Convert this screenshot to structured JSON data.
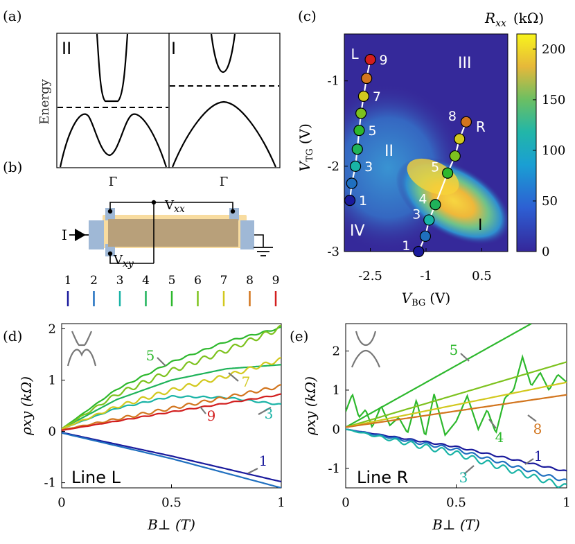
{
  "panel_labels": {
    "a": "(a)",
    "b": "(b)",
    "c": "(c)",
    "d": "(d)",
    "e": "(e)"
  },
  "panel_a": {
    "ylabel": "Energy",
    "left": {
      "region": "II",
      "xtick": "Γ"
    },
    "right": {
      "region": "I",
      "xtick": "Γ"
    }
  },
  "panel_b": {
    "current_label": "I",
    "vxx_label": {
      "main": "V",
      "sub": "xx"
    },
    "vxy_label": {
      "main": "V",
      "sub": "xy"
    },
    "line_indices": [
      "1",
      "2",
      "3",
      "4",
      "5",
      "6",
      "7",
      "8",
      "9"
    ],
    "line_colors": [
      "#1a1a9c",
      "#1f6fbf",
      "#19b3a6",
      "#1fb35a",
      "#2db82d",
      "#7dc21e",
      "#d2c81e",
      "#d2751e",
      "#d21e1e"
    ],
    "colors": {
      "device": "#b8a07a",
      "contact": "#9fb8d6",
      "halo": "#f8dca0"
    }
  },
  "panel_c": {
    "colorbar_label": {
      "main": "R",
      "sub": "xx",
      "unit": "(kΩ)"
    },
    "colorbar_ticks": [
      "200",
      "150",
      "100",
      "50",
      "0"
    ],
    "colorbar_range": [
      0,
      215
    ],
    "xlabel": {
      "main": "V",
      "sub": "BG",
      "unit": "(V)"
    },
    "ylabel": {
      "main": "V",
      "sub": "TG",
      "unit": "(V)"
    },
    "xticks": [
      "-2.5",
      "-1",
      "0.5"
    ],
    "yticks": [
      "-1",
      "-2",
      "-3"
    ],
    "regions": [
      "I",
      "II",
      "III",
      "IV"
    ],
    "line_L": {
      "name": "L",
      "labels": [
        "1",
        "3",
        "5",
        "7",
        "9"
      ]
    },
    "line_R": {
      "name": "R",
      "labels": [
        "1",
        "3",
        "4",
        "5",
        "8"
      ]
    }
  },
  "chart_data": [
    {
      "type": "heatmap",
      "title": "",
      "xlabel": "V_BG (V)",
      "ylabel": "V_TG (V)",
      "xlim": [
        -3.2,
        1.2
      ],
      "ylim": [
        -3.0,
        -0.45
      ],
      "zlabel": "R_xx (kΩ)",
      "zlim": [
        0,
        215
      ],
      "peak_region": "I",
      "line_L": {
        "name": "L",
        "points": [
          {
            "label": "1",
            "vbg": -3.05,
            "vtg": -2.4
          },
          {
            "label": "2",
            "vbg": -3.0,
            "vtg": -2.2
          },
          {
            "label": "3",
            "vbg": -2.9,
            "vtg": -2.0
          },
          {
            "label": "4",
            "vbg": -2.85,
            "vtg": -1.8
          },
          {
            "label": "5",
            "vbg": -2.8,
            "vtg": -1.58
          },
          {
            "label": "6",
            "vbg": -2.75,
            "vtg": -1.38
          },
          {
            "label": "7",
            "vbg": -2.68,
            "vtg": -1.18
          },
          {
            "label": "8",
            "vbg": -2.6,
            "vtg": -0.97
          },
          {
            "label": "9",
            "vbg": -2.5,
            "vtg": -0.75
          }
        ]
      },
      "line_R": {
        "name": "R",
        "points": [
          {
            "label": "1",
            "vbg": -1.2,
            "vtg": -3.0
          },
          {
            "label": "2",
            "vbg": -1.02,
            "vtg": -2.82
          },
          {
            "label": "3",
            "vbg": -0.92,
            "vtg": -2.63
          },
          {
            "label": "4",
            "vbg": -0.75,
            "vtg": -2.45
          },
          {
            "label": "5",
            "vbg": -0.42,
            "vtg": -2.08
          },
          {
            "label": "6",
            "vbg": -0.22,
            "vtg": -1.88
          },
          {
            "label": "7",
            "vbg": -0.1,
            "vtg": -1.68
          },
          {
            "label": "8",
            "vbg": 0.08,
            "vtg": -1.48
          }
        ]
      }
    },
    {
      "type": "line",
      "title": "Line L",
      "xlabel": "B⊥ (T)",
      "ylabel": "ρxy (kΩ)",
      "xlim": [
        0,
        1
      ],
      "ylim": [
        -1.1,
        2.1
      ],
      "xticks": [
        "0",
        "0.5",
        "1"
      ],
      "yticks": [
        "2",
        "1",
        "0",
        "-1"
      ],
      "series": [
        {
          "name": "1",
          "color": "#1a1a9c",
          "x": [
            0,
            0.5,
            1
          ],
          "y": [
            -0.02,
            -0.48,
            -0.98
          ]
        },
        {
          "name": "2",
          "color": "#1f6fbf",
          "x": [
            0,
            0.5,
            1
          ],
          "y": [
            -0.03,
            -0.53,
            -1.1
          ]
        },
        {
          "name": "3",
          "color": "#19b3a6",
          "x": [
            0,
            0.25,
            0.5,
            0.75,
            1
          ],
          "y": [
            0.05,
            0.45,
            0.68,
            0.66,
            0.52
          ],
          "wiggle": 0.015
        },
        {
          "name": "4",
          "color": "#1fb35a",
          "x": [
            0,
            0.25,
            0.5,
            0.75,
            1
          ],
          "y": [
            0.05,
            0.62,
            1.0,
            1.22,
            1.3
          ]
        },
        {
          "name": "5",
          "color": "#2db82d",
          "x": [
            0,
            0.25,
            0.5,
            0.75,
            1
          ],
          "y": [
            0.05,
            0.82,
            1.35,
            1.75,
            2.02
          ],
          "wiggle": 0.015
        },
        {
          "name": "6",
          "color": "#7dc21e",
          "x": [
            0,
            0.25,
            0.5,
            0.75,
            1
          ],
          "y": [
            0.05,
            0.72,
            1.18,
            1.58,
            2.02
          ],
          "wiggle": 0.05
        },
        {
          "name": "7",
          "color": "#d2c81e",
          "x": [
            0,
            0.25,
            0.5,
            0.75,
            1
          ],
          "y": [
            0.05,
            0.48,
            0.8,
            1.08,
            1.4
          ],
          "wiggle": 0.04
        },
        {
          "name": "8",
          "color": "#d2751e",
          "x": [
            0,
            0.5,
            1
          ],
          "y": [
            0.03,
            0.45,
            0.88
          ],
          "wiggle": 0.03
        },
        {
          "name": "9",
          "color": "#d21e1e",
          "x": [
            0,
            0.5,
            1
          ],
          "y": [
            0.02,
            0.38,
            0.72
          ],
          "wiggle": 0.01
        }
      ],
      "annotations": [
        {
          "text": "5",
          "series": "5"
        },
        {
          "text": "7",
          "series": "7"
        },
        {
          "text": "9",
          "series": "9"
        },
        {
          "text": "3",
          "series": "3"
        },
        {
          "text": "1",
          "series": "1"
        }
      ]
    },
    {
      "type": "line",
      "title": "Line R",
      "xlabel": "B⊥ (T)",
      "ylabel": "ρxy (kΩ)",
      "xlim": [
        0,
        1
      ],
      "ylim": [
        -1.5,
        2.7
      ],
      "xticks": [
        "0",
        "0.5",
        "1"
      ],
      "yticks": [
        "2",
        "1",
        "0",
        "-1"
      ],
      "series": [
        {
          "name": "1",
          "color": "#1a1a9c",
          "x": [
            0,
            0.5,
            1
          ],
          "y": [
            0.0,
            -0.45,
            -1.08
          ],
          "wiggle": 0.02
        },
        {
          "name": "2",
          "color": "#1f6fbf",
          "x": [
            0,
            0.5,
            1
          ],
          "y": [
            0.0,
            -0.52,
            -1.33
          ],
          "wiggle": 0.04
        },
        {
          "name": "3",
          "color": "#19b3a6",
          "x": [
            0,
            0.25,
            0.5,
            0.75,
            1
          ],
          "y": [
            0.0,
            -0.32,
            -0.62,
            -1.05,
            -1.48
          ],
          "wiggle": 0.07
        },
        {
          "name": "4",
          "color": "#2db82d",
          "x": [
            0,
            0.03,
            0.06,
            0.09,
            0.12,
            0.16,
            0.2,
            0.24,
            0.28,
            0.32,
            0.36,
            0.4,
            0.45,
            0.5,
            0.55,
            0.6,
            0.64,
            0.68,
            0.72,
            0.76,
            0.8,
            0.84,
            0.88,
            0.92,
            0.96,
            1.0
          ],
          "y": [
            0.45,
            0.9,
            0.3,
            0.5,
            0.05,
            0.6,
            0.1,
            0.3,
            -0.1,
            0.75,
            -0.2,
            0.9,
            -0.15,
            0.2,
            0.85,
            0.0,
            0.5,
            -0.1,
            0.8,
            1.0,
            1.85,
            1.1,
            1.45,
            1.0,
            1.4,
            1.2
          ]
        },
        {
          "name": "5",
          "color": "#2db82d",
          "x": [
            0,
            0.84
          ],
          "y": [
            0.05,
            2.7
          ]
        },
        {
          "name": "6",
          "color": "#7dc21e",
          "x": [
            0,
            1
          ],
          "y": [
            0.05,
            1.72
          ]
        },
        {
          "name": "7",
          "color": "#d2c81e",
          "x": [
            0,
            1
          ],
          "y": [
            0.05,
            1.2
          ]
        },
        {
          "name": "8",
          "color": "#d2751e",
          "x": [
            0,
            1
          ],
          "y": [
            0.05,
            0.88
          ]
        }
      ],
      "annotations": [
        {
          "text": "5",
          "series": "5"
        },
        {
          "text": "8",
          "series": "8"
        },
        {
          "text": "4",
          "series": "4"
        },
        {
          "text": "3",
          "series": "3"
        },
        {
          "text": "1",
          "series": "1"
        }
      ]
    }
  ]
}
